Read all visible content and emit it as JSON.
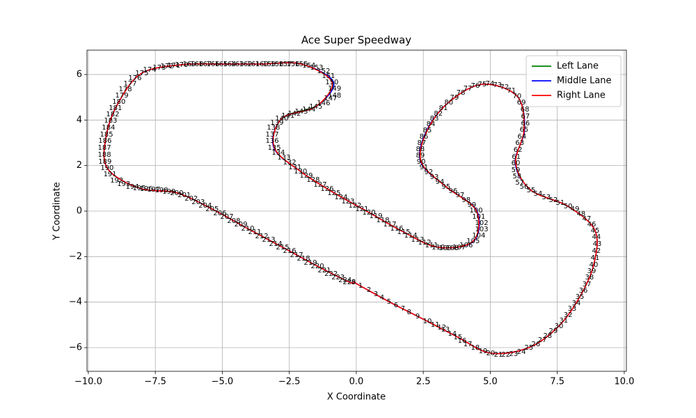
{
  "chart_data": {
    "type": "line",
    "title": "Ace Super Speedway",
    "x_label": "X Coordinate",
    "y_label": "Y Coordinate",
    "xlim": [
      -10.05,
      10.08
    ],
    "ylim": [
      -7.04,
      7.07
    ],
    "xticks": [
      {
        "value": -10,
        "label": "−10.0"
      },
      {
        "value": -7.5,
        "label": "−7.5"
      },
      {
        "value": -5,
        "label": "−5.0"
      },
      {
        "value": -2.5,
        "label": "−2.5"
      },
      {
        "value": 0,
        "label": "0.0"
      },
      {
        "value": 2.5,
        "label": "2.5"
      },
      {
        "value": 5,
        "label": "5.0"
      },
      {
        "value": 7.5,
        "label": "7.5"
      },
      {
        "value": 10,
        "label": "10.0"
      }
    ],
    "yticks": [
      {
        "value": -6,
        "label": "−6"
      },
      {
        "value": -4,
        "label": "−4"
      },
      {
        "value": -2,
        "label": "−2"
      },
      0,
      2,
      4,
      6
    ],
    "grid": true,
    "legend": "upper right",
    "series": [
      {
        "name": "Left Lane",
        "color": "#008000",
        "x": [
          -0.1,
          1.22,
          2.65,
          3.79,
          5.01,
          6.44,
          7.56,
          8.34,
          8.86,
          8.91,
          7.9,
          6.52,
          5.95,
          6.26,
          6.0,
          4.7,
          3.45,
          2.65,
          2.42,
          3.35,
          4.47,
          4.36,
          3.06,
          1.77,
          0.47,
          -0.83,
          -2.08,
          -3.06,
          -2.78,
          -1.45,
          -0.88,
          -2.05,
          -3.53,
          -5.04,
          -6.52,
          -8.0,
          -8.86,
          -9.32,
          -9.3,
          -8.1,
          -6.7,
          -5.38,
          -4.05,
          -2.75,
          -1.45,
          -0.26,
          -0.1
        ],
        "y": [
          -3.12,
          -3.98,
          -4.84,
          -5.54,
          -6.24,
          -6.0,
          -5.05,
          -3.77,
          -2.36,
          -0.86,
          0.21,
          0.92,
          2.11,
          3.58,
          5.05,
          5.57,
          4.78,
          3.55,
          2.17,
          1.07,
          0.03,
          -1.32,
          -1.59,
          -0.92,
          -0.06,
          0.8,
          1.74,
          2.79,
          4.07,
          4.65,
          5.66,
          6.46,
          6.46,
          6.46,
          6.43,
          6.06,
          4.8,
          3.37,
          1.9,
          1.01,
          0.8,
          0.09,
          -0.77,
          -1.59,
          -2.42,
          -3.12,
          -3.12
        ]
      },
      {
        "name": "Middle Lane",
        "color": "#0000ff",
        "x": [
          -0.1,
          1.22,
          2.65,
          3.79,
          5.01,
          6.44,
          7.56,
          8.34,
          8.86,
          8.91,
          7.9,
          6.52,
          5.93,
          6.28,
          6.0,
          4.7,
          3.45,
          2.63,
          2.4,
          3.35,
          4.49,
          4.38,
          3.06,
          1.77,
          0.47,
          -0.83,
          -2.08,
          -3.08,
          -2.78,
          -1.51,
          -0.85,
          -2.05,
          -3.53,
          -5.04,
          -6.52,
          -8.0,
          -8.86,
          -9.32,
          -9.3,
          -8.1,
          -6.7,
          -5.38,
          -4.05,
          -2.75,
          -1.45,
          -0.26,
          -0.1
        ],
        "y": [
          -3.12,
          -3.98,
          -4.84,
          -5.54,
          -6.24,
          -6.0,
          -5.05,
          -3.77,
          -2.36,
          -0.86,
          0.21,
          0.92,
          2.11,
          3.58,
          5.05,
          5.57,
          4.78,
          3.55,
          2.17,
          1.07,
          0.03,
          -1.32,
          -1.59,
          -0.92,
          -0.06,
          0.8,
          1.74,
          2.79,
          4.07,
          4.59,
          5.66,
          6.46,
          6.46,
          6.46,
          6.43,
          6.06,
          4.8,
          3.37,
          1.9,
          1.01,
          0.8,
          0.09,
          -0.77,
          -1.59,
          -2.42,
          -3.12,
          -3.12
        ]
      },
      {
        "name": "Right Lane",
        "color": "#ff0000",
        "x": [
          -0.1,
          1.22,
          2.65,
          3.79,
          5.01,
          6.44,
          7.56,
          8.34,
          8.86,
          8.91,
          7.9,
          6.52,
          5.95,
          6.26,
          6.0,
          4.7,
          3.45,
          2.65,
          2.42,
          3.35,
          4.47,
          4.36,
          3.06,
          1.77,
          0.47,
          -0.83,
          -2.08,
          -3.06,
          -2.78,
          -1.51,
          -0.91,
          -2.05,
          -3.53,
          -5.04,
          -6.52,
          -8.0,
          -8.86,
          -9.32,
          -9.3,
          -8.1,
          -6.7,
          -5.38,
          -4.05,
          -2.75,
          -1.45,
          -0.26,
          -0.1
        ],
        "y": [
          -3.12,
          -3.98,
          -4.84,
          -5.54,
          -6.24,
          -6.0,
          -5.05,
          -3.77,
          -2.36,
          -0.86,
          0.21,
          0.92,
          2.11,
          3.58,
          5.05,
          5.57,
          4.78,
          3.55,
          2.17,
          1.07,
          0.03,
          -1.32,
          -1.59,
          -0.92,
          -0.06,
          0.8,
          1.74,
          2.79,
          4.07,
          4.59,
          5.66,
          6.46,
          6.46,
          6.46,
          6.43,
          6.06,
          4.8,
          3.37,
          1.9,
          1.01,
          0.8,
          0.09,
          -0.77,
          -1.59,
          -2.42,
          -3.12,
          -3.12
        ]
      }
    ],
    "waypoints": {
      "x": [
        -0.1,
        0.16,
        0.47,
        0.73,
        0.96,
        1.22,
        1.48,
        1.74,
        1.97,
        2.29,
        2.65,
        2.94,
        3.19,
        3.32,
        3.58,
        3.79,
        3.95,
        4.16,
        4.44,
        4.73,
        5.01,
        5.3,
        5.58,
        5.87,
        6.16,
        6.44,
        6.7,
        6.94,
        7.14,
        7.35,
        7.56,
        7.74,
        7.9,
        8.05,
        8.21,
        8.34,
        8.47,
        8.6,
        8.7,
        8.78,
        8.86,
        8.91,
        8.96,
        8.99,
        8.96,
        8.91,
        8.78,
        8.6,
        8.39,
        8.16,
        7.9,
        7.61,
        7.35,
        7.09,
        6.78,
        6.52,
        6.26,
        6.1,
        6.0,
        5.95,
        5.95,
        5.97,
        6.03,
        6.1,
        6.18,
        6.26,
        6.31,
        6.31,
        6.29,
        6.16,
        6.0,
        5.79,
        5.53,
        5.27,
        4.99,
        4.7,
        4.44,
        4.16,
        3.9,
        3.66,
        3.45,
        3.25,
        3.06,
        2.91,
        2.78,
        2.65,
        2.52,
        2.44,
        2.39,
        2.39,
        2.42,
        2.52,
        2.7,
        2.91,
        3.12,
        3.35,
        3.61,
        3.87,
        4.1,
        4.31,
        4.47,
        4.57,
        4.68,
        4.68,
        4.57,
        4.36,
        4.1,
        3.84,
        3.58,
        3.32,
        3.06,
        2.81,
        2.55,
        2.29,
        2.03,
        1.77,
        1.51,
        1.25,
        0.99,
        0.73,
        0.47,
        0.21,
        -0.05,
        -0.31,
        -0.57,
        -0.83,
        -1.09,
        -1.35,
        -1.61,
        -1.87,
        -2.08,
        -2.29,
        -2.49,
        -2.7,
        -2.91,
        -3.06,
        -3.14,
        -3.14,
        -3.09,
        -2.96,
        -2.78,
        -2.55,
        -2.31,
        -2.05,
        -1.77,
        -1.51,
        -1.22,
        -0.96,
        -0.81,
        -0.81,
        -0.91,
        -1.04,
        -1.22,
        -1.48,
        -1.77,
        -2.05,
        -2.36,
        -2.65,
        -2.96,
        -3.25,
        -3.53,
        -3.84,
        -4.13,
        -4.44,
        -4.73,
        -5.04,
        -5.35,
        -5.64,
        -5.95,
        -6.23,
        -6.52,
        -6.81,
        -7.06,
        -7.35,
        -7.71,
        -8.0,
        -8.26,
        -8.44,
        -8.62,
        -8.75,
        -8.86,
        -8.99,
        -9.09,
        -9.17,
        -9.25,
        -9.32,
        -9.38,
        -9.4,
        -9.4,
        -9.38,
        -9.3,
        -9.19,
        -8.94,
        -8.68,
        -8.36,
        -8.1,
        -7.84,
        -7.56,
        -7.27,
        -6.99,
        -6.7,
        -6.42,
        -6.16,
        -5.9,
        -5.64,
        -5.38,
        -5.09,
        -4.83,
        -4.57,
        -4.31,
        -4.05,
        -3.79,
        -3.53,
        -3.27,
        -3.01,
        -2.75,
        -2.49,
        -2.23,
        -1.97,
        -1.71,
        -1.45,
        -1.19,
        -0.94,
        -0.68,
        -0.42,
        -0.26
      ],
      "y": [
        -3.12,
        -3.28,
        -3.46,
        -3.64,
        -3.8,
        -3.98,
        -4.13,
        -4.29,
        -4.44,
        -4.62,
        -4.84,
        -4.99,
        -5.11,
        -5.2,
        -5.39,
        -5.54,
        -5.69,
        -5.85,
        -6.0,
        -6.15,
        -6.24,
        -6.3,
        -6.3,
        -6.27,
        -6.18,
        -6.0,
        -5.85,
        -5.66,
        -5.48,
        -5.27,
        -5.05,
        -4.81,
        -4.56,
        -4.29,
        -4.04,
        -3.77,
        -3.49,
        -3.21,
        -2.91,
        -2.63,
        -2.36,
        -2.05,
        -1.74,
        -1.44,
        -1.13,
        -0.86,
        -0.58,
        -0.34,
        -0.12,
        0.09,
        0.21,
        0.37,
        0.49,
        0.61,
        0.77,
        0.92,
        1.07,
        1.25,
        1.53,
        1.81,
        2.11,
        2.39,
        2.69,
        3.0,
        3.28,
        3.58,
        3.86,
        4.16,
        4.47,
        4.78,
        5.05,
        5.3,
        5.45,
        5.54,
        5.6,
        5.57,
        5.51,
        5.39,
        5.2,
        4.99,
        4.78,
        4.53,
        4.28,
        4.07,
        3.83,
        3.55,
        3.28,
        3.0,
        2.72,
        2.45,
        2.17,
        1.93,
        1.71,
        1.5,
        1.29,
        1.07,
        0.89,
        0.7,
        0.49,
        0.28,
        0.03,
        -0.24,
        -0.52,
        -0.8,
        -1.07,
        -1.32,
        -1.5,
        -1.59,
        -1.62,
        -1.62,
        -1.59,
        -1.5,
        -1.38,
        -1.25,
        -1.07,
        -0.92,
        -0.77,
        -0.58,
        -0.4,
        -0.21,
        -0.06,
        0.09,
        0.24,
        0.43,
        0.61,
        0.8,
        0.98,
        1.16,
        1.38,
        1.56,
        1.74,
        1.93,
        2.14,
        2.36,
        2.57,
        2.79,
        3.09,
        3.37,
        3.67,
        3.89,
        4.07,
        4.19,
        4.28,
        4.37,
        4.47,
        4.59,
        4.74,
        4.96,
        5.08,
        5.39,
        5.66,
        5.94,
        6.15,
        6.3,
        6.4,
        6.46,
        6.46,
        6.46,
        6.46,
        6.46,
        6.46,
        6.46,
        6.46,
        6.46,
        6.46,
        6.46,
        6.46,
        6.46,
        6.46,
        6.46,
        6.43,
        6.4,
        6.37,
        6.3,
        6.21,
        6.06,
        5.84,
        5.6,
        5.36,
        5.08,
        4.8,
        4.53,
        4.25,
        3.98,
        3.67,
        3.37,
        3.09,
        2.79,
        2.48,
        2.17,
        1.9,
        1.62,
        1.35,
        1.19,
        1.07,
        1.01,
        0.98,
        0.95,
        0.92,
        0.86,
        0.8,
        0.7,
        0.55,
        0.4,
        0.24,
        0.09,
        -0.09,
        -0.24,
        -0.43,
        -0.58,
        -0.77,
        -0.92,
        -1.1,
        -1.25,
        -1.44,
        -1.59,
        -1.74,
        -1.93,
        -2.08,
        -2.26,
        -2.42,
        -2.6,
        -2.75,
        -2.91,
        -3.03,
        -3.12
      ],
      "labels": [
        0,
        1,
        2,
        3,
        4,
        5,
        6,
        7,
        8,
        9,
        10,
        11,
        12,
        13,
        14,
        15,
        16,
        17,
        18,
        19,
        20,
        21,
        22,
        23,
        24,
        25,
        26,
        27,
        28,
        29,
        30,
        31,
        32,
        33,
        34,
        35,
        36,
        37,
        38,
        39,
        40,
        41,
        42,
        43,
        44,
        45,
        46,
        47,
        48,
        49,
        50,
        51,
        52,
        53,
        54,
        55,
        56,
        57,
        58,
        59,
        60,
        61,
        62,
        63,
        64,
        65,
        66,
        67,
        68,
        69,
        70,
        71,
        72,
        73,
        74,
        75,
        76,
        77,
        78,
        79,
        80,
        81,
        82,
        83,
        84,
        85,
        86,
        87,
        88,
        89,
        90,
        91,
        92,
        93,
        94,
        95,
        96,
        97,
        98,
        99,
        100,
        101,
        102,
        103,
        104,
        105,
        106,
        107,
        108,
        109,
        110,
        111,
        112,
        113,
        114,
        115,
        116,
        117,
        118,
        119,
        120,
        121,
        122,
        123,
        124,
        125,
        126,
        127,
        128,
        129,
        130,
        131,
        132,
        133,
        134,
        135,
        136,
        137,
        138,
        139,
        140,
        141,
        142,
        143,
        144,
        145,
        146,
        147,
        148,
        149,
        150,
        151,
        152,
        153,
        154,
        155,
        156,
        157,
        158,
        159,
        160,
        161,
        162,
        163,
        164,
        165,
        166,
        167,
        168,
        169,
        170,
        171,
        172,
        173,
        174,
        175,
        176,
        177,
        178,
        179,
        180,
        181,
        182,
        183,
        184,
        185,
        186,
        187,
        188,
        189,
        190,
        191,
        192,
        193,
        194,
        195,
        196,
        197,
        198,
        199,
        200,
        201,
        202,
        203,
        204,
        205,
        206,
        207,
        208,
        209,
        210,
        211,
        212,
        213,
        214,
        215,
        216,
        217,
        218,
        219,
        220,
        221,
        222,
        223,
        224,
        225
      ]
    }
  }
}
